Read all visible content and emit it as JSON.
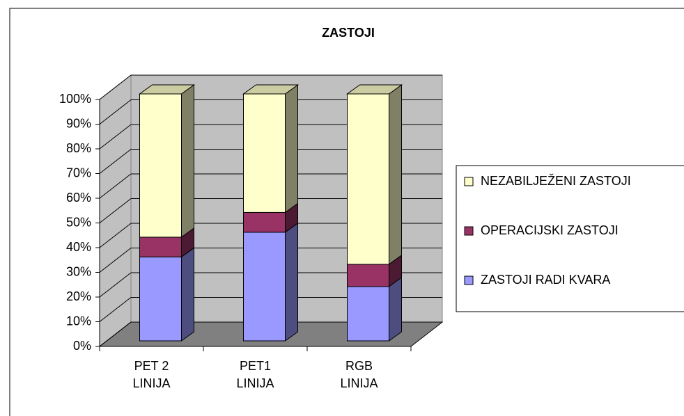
{
  "chart_data": {
    "type": "bar3d_stacked",
    "title": "ZASTOJI",
    "categories": [
      "PET 2 LINIJA",
      "PET1 LINIJA",
      "RGB LINIJA"
    ],
    "series": [
      {
        "name": "ZASTOJI RADI KVARA",
        "color": "#9999ff",
        "values": [
          34,
          44,
          22
        ]
      },
      {
        "name": "OPERACIJSKI ZASTOJI",
        "color": "#993366",
        "values": [
          8,
          8,
          9
        ]
      },
      {
        "name": "NEZABILJEŽENI ZASTOJI",
        "color": "#ffffcc",
        "values": [
          58,
          48,
          69
        ]
      }
    ],
    "ylim": [
      0,
      100
    ],
    "yticks": [
      {
        "value": 0,
        "label": "0%"
      },
      {
        "value": 10,
        "label": "10%"
      },
      {
        "value": 20,
        "label": "20%"
      },
      {
        "value": 30,
        "label": "30%"
      },
      {
        "value": 40,
        "label": "40%"
      },
      {
        "value": 50,
        "label": "50%"
      },
      {
        "value": 60,
        "label": "60%"
      },
      {
        "value": 70,
        "label": "70%"
      },
      {
        "value": 80,
        "label": "80%"
      },
      {
        "value": 90,
        "label": "90%"
      },
      {
        "value": 100,
        "label": "100%"
      }
    ],
    "grid": true,
    "legend": "right"
  }
}
